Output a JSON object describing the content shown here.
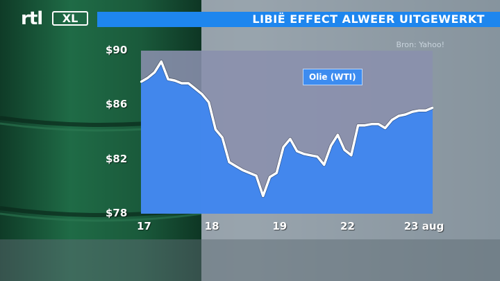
{
  "brand": {
    "logo_main": "rtl",
    "logo_sub": "XL"
  },
  "header": {
    "title": "LIBIË EFFECT ALWEER UITGEWERKT"
  },
  "chart_data": {
    "type": "area",
    "title": "",
    "source": "Bron: Yahoo!",
    "series": [
      {
        "name": "Olie (WTI)",
        "x": [
          0.0,
          0.1,
          0.2,
          0.3,
          0.4,
          0.5,
          0.6,
          0.7,
          0.8,
          0.9,
          1.0,
          1.1,
          1.2,
          1.3,
          1.4,
          1.5,
          1.6,
          1.7,
          1.8,
          1.9,
          2.0,
          2.1,
          2.2,
          2.3,
          2.4,
          2.5,
          2.6,
          2.7,
          2.8,
          2.9,
          3.0,
          3.1,
          3.2,
          3.3,
          3.4,
          3.5,
          3.6,
          3.7,
          3.8,
          3.9,
          4.0,
          4.1,
          4.2,
          4.3
        ],
        "values": [
          87.7,
          88.0,
          88.4,
          89.2,
          87.9,
          87.8,
          87.6,
          87.6,
          87.2,
          86.8,
          86.2,
          84.2,
          83.6,
          81.8,
          81.5,
          81.2,
          81.0,
          80.8,
          79.3,
          80.7,
          81.0,
          82.9,
          83.5,
          82.6,
          82.4,
          82.3,
          82.2,
          81.6,
          83.0,
          83.8,
          82.7,
          82.3,
          84.5,
          84.5,
          84.6,
          84.6,
          84.3,
          84.9,
          85.2,
          85.3,
          85.5,
          85.6,
          85.6,
          85.8
        ]
      }
    ],
    "xtick_labels": [
      "17",
      "18",
      "19",
      "22",
      "23 aug"
    ],
    "xtick_positions": [
      0,
      1,
      2,
      3,
      4
    ],
    "ytick_labels": [
      "$78",
      "$82",
      "$86",
      "$90"
    ],
    "ytick_values": [
      78,
      82,
      86,
      90
    ],
    "xlim": [
      0,
      4.3
    ],
    "ylim": [
      78,
      90
    ],
    "legend": "center-top",
    "grid": false,
    "colors": {
      "area": "#3f87f0",
      "line": "#ffffff",
      "title_bar": "#1e86ee"
    }
  }
}
